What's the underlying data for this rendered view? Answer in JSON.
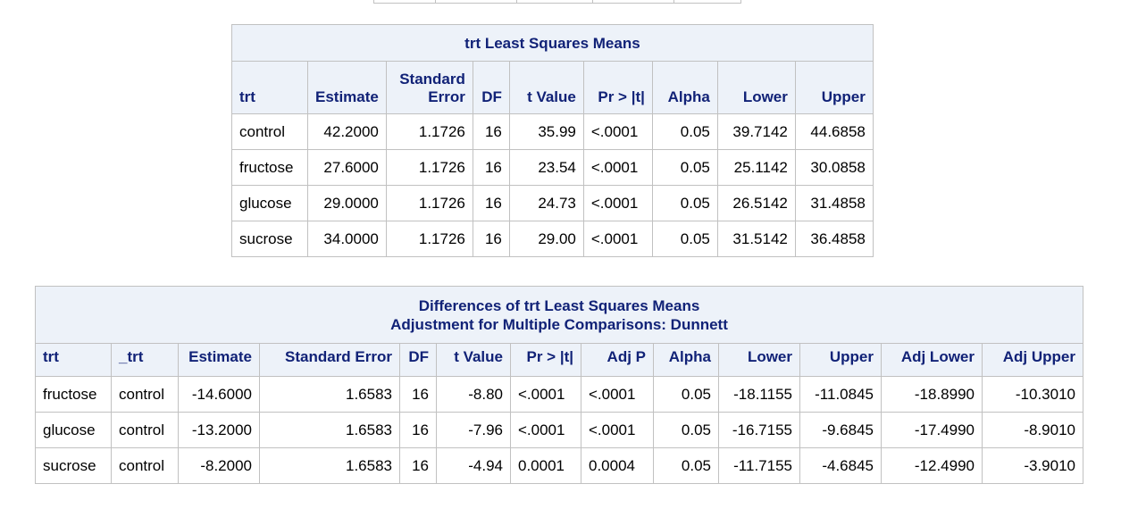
{
  "lsmeans": {
    "title": "trt Least Squares Means",
    "columns": [
      "trt",
      "Estimate",
      "Standard Error",
      "DF",
      "t Value",
      "Pr > |t|",
      "Alpha",
      "Lower",
      "Upper"
    ],
    "col_std_top": "Standard",
    "col_std_bottom": "Error",
    "rows": [
      [
        "control",
        "42.2000",
        "1.1726",
        "16",
        "35.99",
        "<.0001",
        "0.05",
        "39.7142",
        "44.6858"
      ],
      [
        "fructose",
        "27.6000",
        "1.1726",
        "16",
        "23.54",
        "<.0001",
        "0.05",
        "25.1142",
        "30.0858"
      ],
      [
        "glucose",
        "29.0000",
        "1.1726",
        "16",
        "24.73",
        "<.0001",
        "0.05",
        "26.5142",
        "31.4858"
      ],
      [
        "sucrose",
        "34.0000",
        "1.1726",
        "16",
        "29.00",
        "<.0001",
        "0.05",
        "31.5142",
        "36.4858"
      ]
    ]
  },
  "diffs": {
    "title_line1": "Differences of trt Least Squares Means",
    "title_line2": "Adjustment for Multiple Comparisons: Dunnett",
    "columns": [
      "trt",
      "_trt",
      "Estimate",
      "Standard Error",
      "DF",
      "t Value",
      "Pr > |t|",
      "Adj P",
      "Alpha",
      "Lower",
      "Upper",
      "Adj Lower",
      "Adj Upper"
    ],
    "rows": [
      [
        "fructose",
        "control",
        "-14.6000",
        "1.6583",
        "16",
        "-8.80",
        "<.0001",
        "<.0001",
        "0.05",
        "-18.1155",
        "-11.0845",
        "-18.8990",
        "-10.3010"
      ],
      [
        "glucose",
        "control",
        "-13.2000",
        "1.6583",
        "16",
        "-7.96",
        "<.0001",
        "<.0001",
        "0.05",
        "-16.7155",
        "-9.6845",
        "-17.4990",
        "-8.9010"
      ],
      [
        "sucrose",
        "control",
        "-8.2000",
        "1.6583",
        "16",
        "-4.94",
        "0.0001",
        "0.0004",
        "0.05",
        "-11.7155",
        "-4.6845",
        "-12.4990",
        "-3.9010"
      ]
    ]
  }
}
